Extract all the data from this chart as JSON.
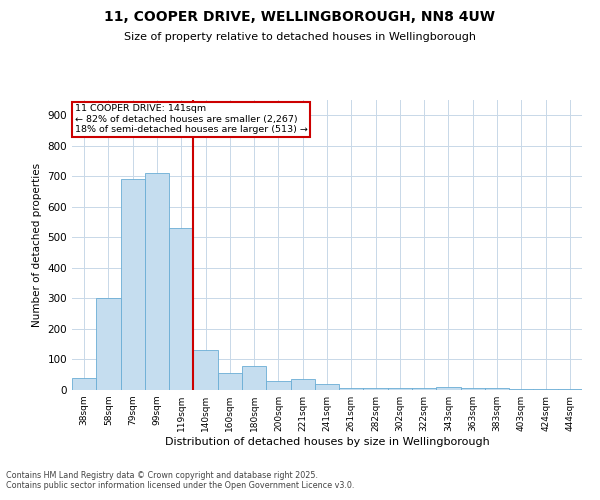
{
  "title_line1": "11, COOPER DRIVE, WELLINGBOROUGH, NN8 4UW",
  "title_line2": "Size of property relative to detached houses in Wellingborough",
  "xlabel": "Distribution of detached houses by size in Wellingborough",
  "ylabel": "Number of detached properties",
  "annotation_title": "11 COOPER DRIVE: 141sqm",
  "annotation_line2": "← 82% of detached houses are smaller (2,267)",
  "annotation_line3": "18% of semi-detached houses are larger (513) →",
  "footnote_line1": "Contains HM Land Registry data © Crown copyright and database right 2025.",
  "footnote_line2": "Contains public sector information licensed under the Open Government Licence v3.0.",
  "bar_color": "#c5ddef",
  "bar_edgecolor": "#6aadd5",
  "annotation_box_edgecolor": "#cc0000",
  "vline_color": "#cc0000",
  "background_color": "#ffffff",
  "grid_color": "#c8d8e8",
  "categories": [
    "38sqm",
    "58sqm",
    "79sqm",
    "99sqm",
    "119sqm",
    "140sqm",
    "160sqm",
    "180sqm",
    "200sqm",
    "221sqm",
    "241sqm",
    "261sqm",
    "282sqm",
    "302sqm",
    "322sqm",
    "343sqm",
    "363sqm",
    "383sqm",
    "403sqm",
    "424sqm",
    "444sqm"
  ],
  "values": [
    40,
    300,
    690,
    710,
    530,
    130,
    55,
    80,
    30,
    35,
    20,
    5,
    8,
    5,
    5,
    10,
    5,
    5,
    3,
    3,
    3
  ],
  "vline_position": 4.5,
  "ylim": [
    0,
    950
  ],
  "yticks": [
    0,
    100,
    200,
    300,
    400,
    500,
    600,
    700,
    800,
    900
  ]
}
